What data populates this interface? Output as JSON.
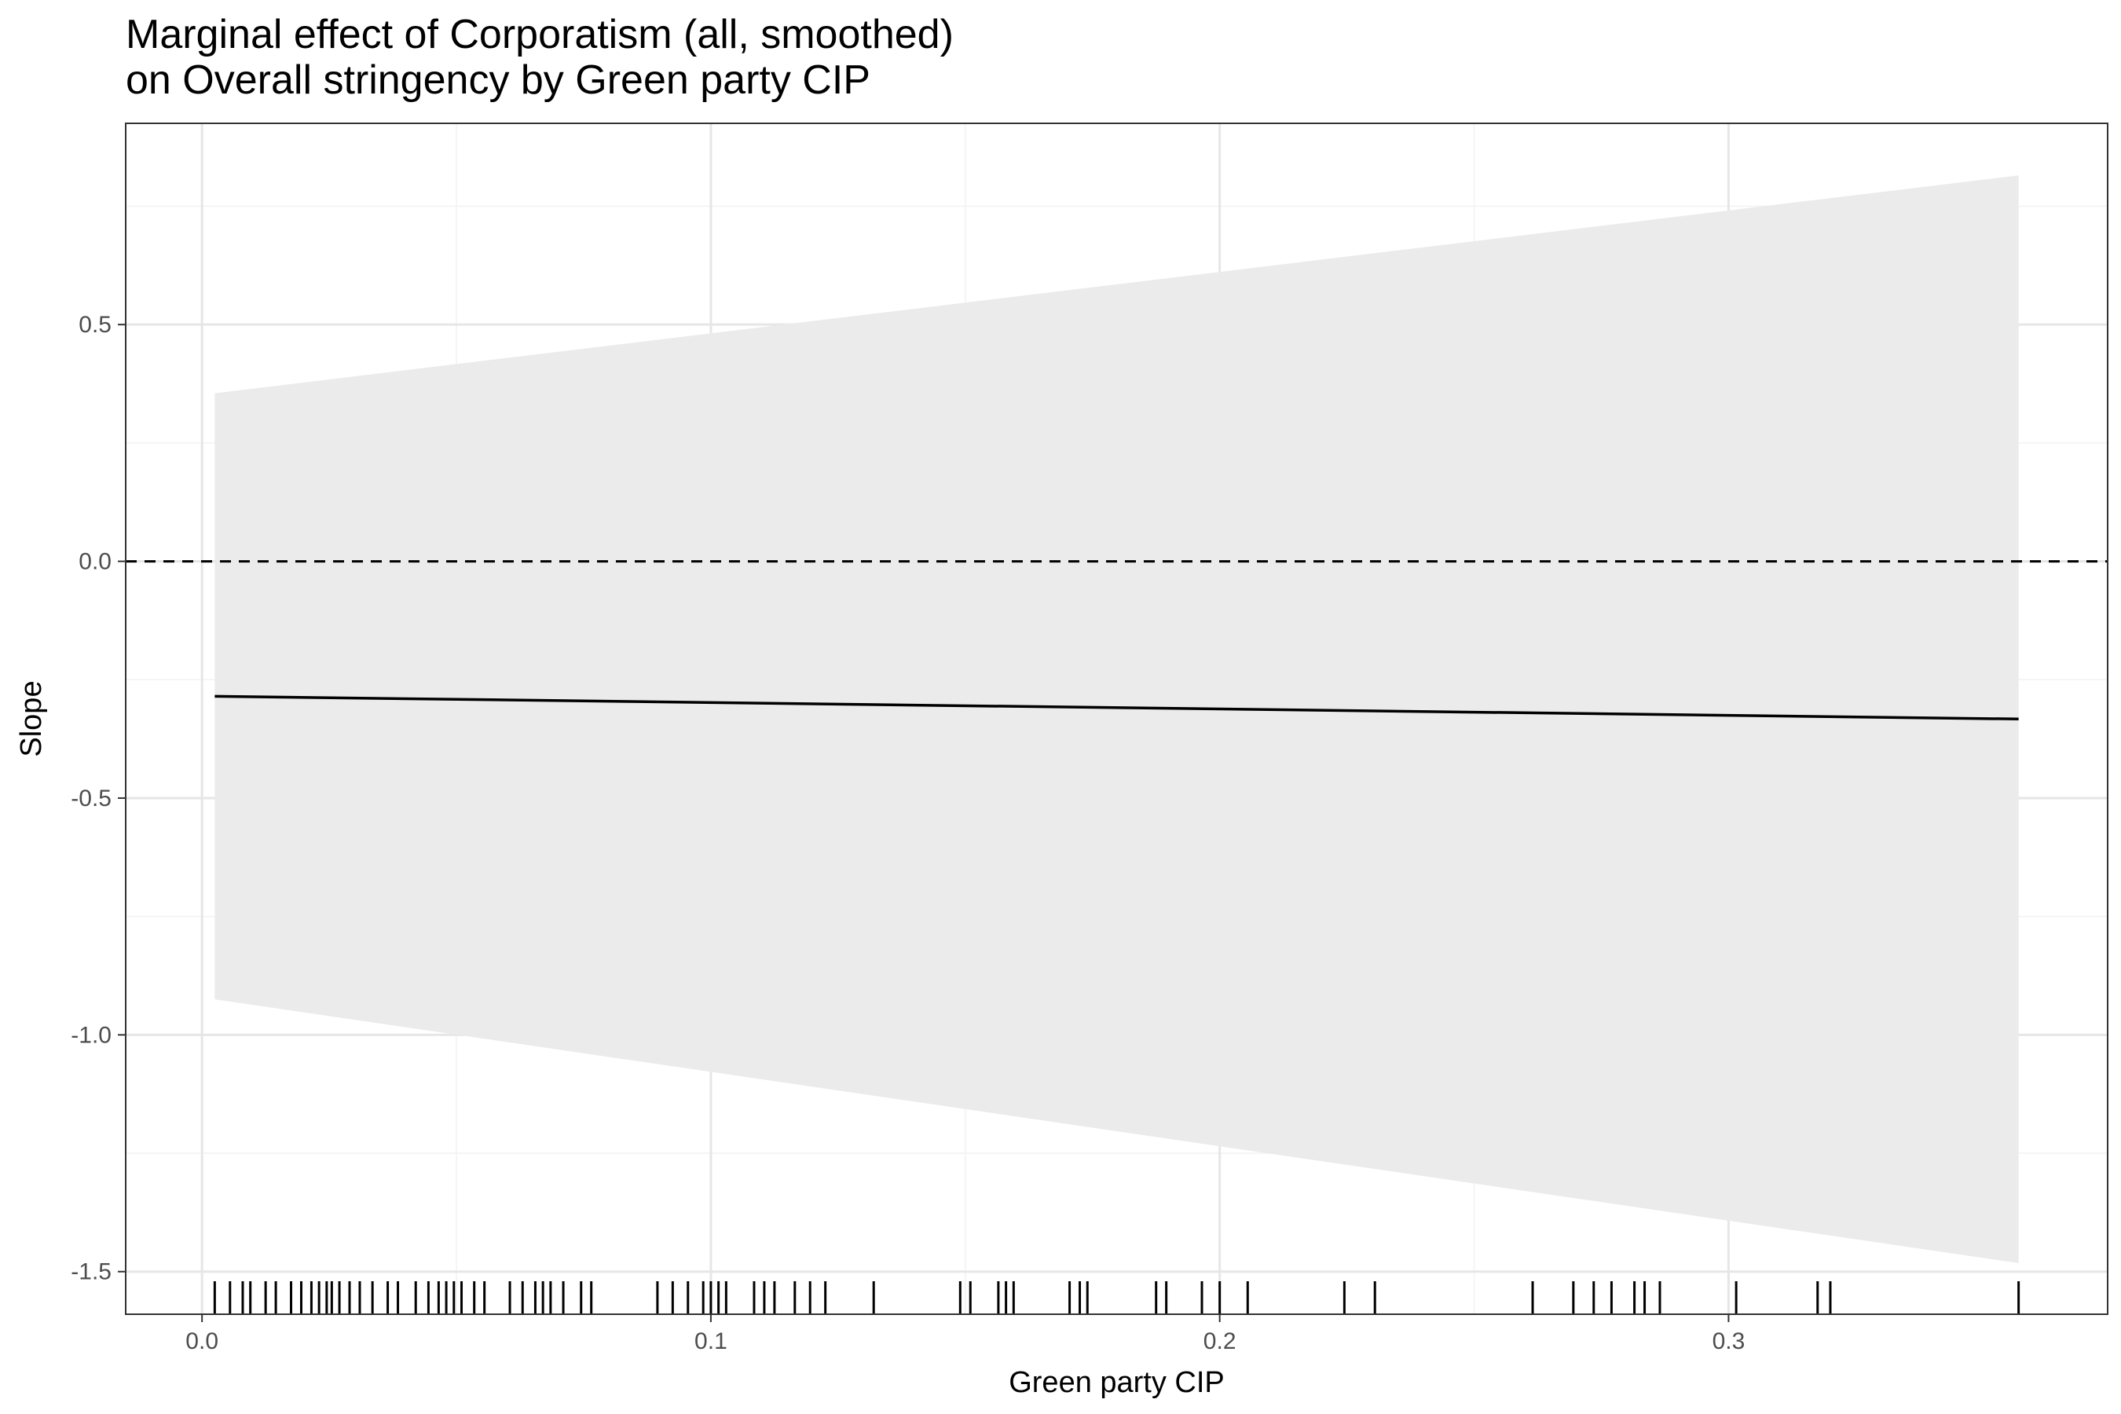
{
  "chart_data": {
    "type": "line",
    "title": "Marginal effect of Corporatism (all, smoothed)",
    "subtitle": "on Overall stringency by Green party CIP",
    "xlabel": "Green party CIP",
    "ylabel": "Slope",
    "xlim": [
      -0.015,
      0.3745
    ],
    "ylim": [
      -1.59,
      0.925
    ],
    "x_ticks": [
      0.0,
      0.1,
      0.2,
      0.3
    ],
    "x_tick_labels": [
      "0.0",
      "0.1",
      "0.2",
      "0.3"
    ],
    "y_ticks": [
      -1.5,
      -1.0,
      -0.5,
      0.0,
      0.5
    ],
    "y_tick_labels": [
      "-1.5",
      "-1.0",
      "-0.5",
      "0.0",
      "0.5"
    ],
    "grid": true,
    "reference_line": {
      "y": 0,
      "style": "dashed"
    },
    "series": [
      {
        "x": [
          0.0025,
          0.357
        ],
        "y": [
          -0.285,
          -0.333
        ],
        "ci_lower": [
          -0.925,
          -1.482
        ],
        "ci_upper": [
          0.355,
          0.815
        ]
      }
    ],
    "rug_x": [
      0.0025,
      0.0055,
      0.008,
      0.0095,
      0.0125,
      0.0145,
      0.0175,
      0.0195,
      0.0215,
      0.023,
      0.0245,
      0.0255,
      0.027,
      0.029,
      0.031,
      0.0335,
      0.0365,
      0.0385,
      0.042,
      0.0445,
      0.0465,
      0.048,
      0.0495,
      0.051,
      0.0535,
      0.0555,
      0.0605,
      0.063,
      0.0655,
      0.067,
      0.0685,
      0.071,
      0.0745,
      0.0765,
      0.0895,
      0.0925,
      0.0955,
      0.0985,
      0.1,
      0.1015,
      0.103,
      0.1085,
      0.1105,
      0.1125,
      0.1165,
      0.1195,
      0.1225,
      0.132,
      0.149,
      0.151,
      0.1565,
      0.158,
      0.1595,
      0.1705,
      0.1725,
      0.174,
      0.1875,
      0.1895,
      0.1965,
      0.2,
      0.2055,
      0.2245,
      0.2305,
      0.2615,
      0.2695,
      0.2735,
      0.277,
      0.2815,
      0.2835,
      0.2865,
      0.3015,
      0.3175,
      0.32,
      0.357
    ]
  }
}
